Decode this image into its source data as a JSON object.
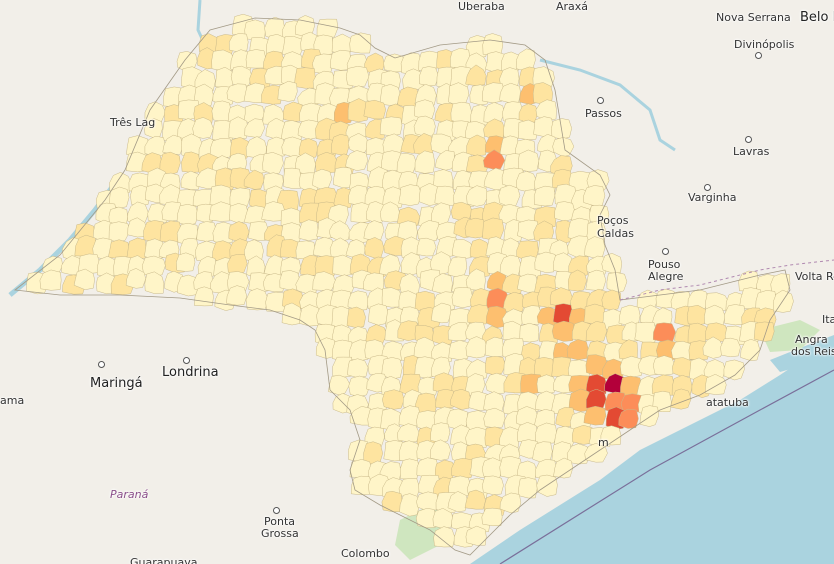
{
  "map": {
    "colors": {
      "land": "#f2efe9",
      "water": "#aad3df",
      "green": "#cfe6bf",
      "c1": "#fff5c8",
      "c2": "#fee4a0",
      "c3": "#fdbf6f",
      "c4": "#fc8d59",
      "c5": "#e34a33",
      "c6": "#b3003a",
      "c7": "#7a0a3a"
    },
    "labels": [
      {
        "text": "Uberaba",
        "kind": "city"
      },
      {
        "text": "Araxá",
        "kind": "city"
      },
      {
        "text": "Nova Serrana",
        "kind": "city"
      },
      {
        "text": "Belo H",
        "kind": "city-big"
      },
      {
        "text": "Divinópolis",
        "kind": "city"
      },
      {
        "text": "Passos",
        "kind": "city"
      },
      {
        "text": "Três Lag",
        "kind": "city"
      },
      {
        "text": "Lavras",
        "kind": "city"
      },
      {
        "text": "Varginha",
        "kind": "city"
      },
      {
        "text": "Poços",
        "kind": "city"
      },
      {
        "text": "Caldas",
        "kind": "city"
      },
      {
        "text": "Pouso",
        "kind": "city"
      },
      {
        "text": "Alegre",
        "kind": "city"
      },
      {
        "text": "Volta Re",
        "kind": "city"
      },
      {
        "text": "Angra",
        "kind": "city"
      },
      {
        "text": "dos Reis",
        "kind": "city"
      },
      {
        "text": "Ita",
        "kind": "city"
      },
      {
        "text": "Maringá",
        "kind": "city-big"
      },
      {
        "text": "Londrina",
        "kind": "city-big"
      },
      {
        "text": "ama",
        "kind": "city"
      },
      {
        "text": "Paraná",
        "kind": "region"
      },
      {
        "text": "Ponta",
        "kind": "city"
      },
      {
        "text": "Grossa",
        "kind": "city"
      },
      {
        "text": "Colombo",
        "kind": "city"
      },
      {
        "text": "Guarapuava",
        "kind": "city"
      },
      {
        "text": "atatuba",
        "kind": "city"
      },
      {
        "text": "m",
        "kind": "city"
      }
    ]
  }
}
